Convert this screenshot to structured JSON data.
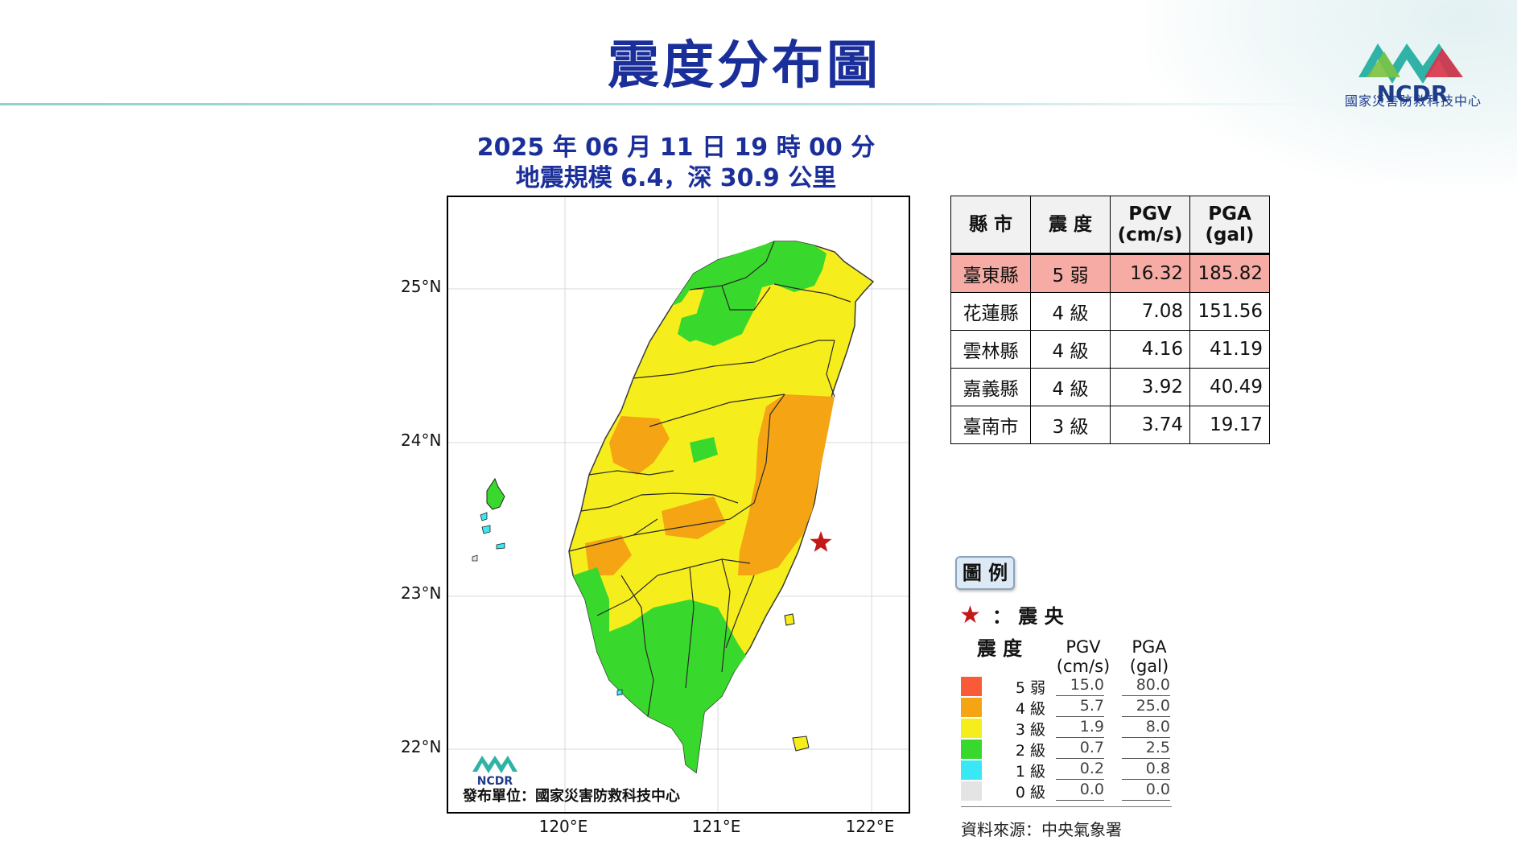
{
  "header": {
    "title": "震度分布圖",
    "logo_text": "NCDR",
    "org_name": "國家災害防救科技中心"
  },
  "event": {
    "datetime": "2025 年 06 月 11 日 19 時 00 分",
    "summary": "地震規模 6.4，深 30.9 公里"
  },
  "map": {
    "lat_labels": [
      "25°N",
      "24°N",
      "23°N",
      "22°N"
    ],
    "lon_labels": [
      "120°E",
      "121°E",
      "122°E"
    ],
    "publisher": "發布單位：國家災害防救科技中心",
    "map_logo_text": "NCDR"
  },
  "table": {
    "headers": [
      "縣 市",
      "震 度",
      "PGV\n(cm/s)",
      "PGA\n(gal)"
    ],
    "rows": [
      {
        "county": "臺東縣",
        "intensity": "5 弱",
        "pgv": "16.32",
        "pga": "185.82",
        "highlight": true
      },
      {
        "county": "花蓮縣",
        "intensity": "4 級",
        "pgv": "7.08",
        "pga": "151.56"
      },
      {
        "county": "雲林縣",
        "intensity": "4 級",
        "pgv": "4.16",
        "pga": "41.19"
      },
      {
        "county": "嘉義縣",
        "intensity": "4 級",
        "pgv": "3.92",
        "pga": "40.49"
      },
      {
        "county": "臺南市",
        "intensity": "3 級",
        "pgv": "3.74",
        "pga": "19.17"
      }
    ]
  },
  "legend": {
    "tag": "圖 例",
    "epicenter_label": "： 震 央",
    "col_intensity": "震 度",
    "col_pgv": "PGV\n(cm/s)",
    "col_pga": "PGA\n(gal)",
    "levels": [
      {
        "label": "5 弱",
        "pgv": "15.0",
        "pga": "80.0",
        "color": "#fa5a38"
      },
      {
        "label": "4 級",
        "pgv": "5.7",
        "pga": "25.0",
        "color": "#f5a414"
      },
      {
        "label": "3 級",
        "pgv": "1.9",
        "pga": "8.0",
        "color": "#f6ee1c"
      },
      {
        "label": "2 級",
        "pgv": "0.7",
        "pga": "2.5",
        "color": "#38d82c"
      },
      {
        "label": "1 級",
        "pgv": "0.2",
        "pga": "0.8",
        "color": "#3ae8f5"
      },
      {
        "label": "0 級",
        "pgv": "0.0",
        "pga": "0.0",
        "color": "#e4e4e4"
      }
    ],
    "source": "資料來源：中央氣象署"
  },
  "colors": {
    "title": "#1b2f9a",
    "int5w": "#fa5a38",
    "int4": "#f5a414",
    "int3": "#f6ee1c",
    "int2": "#38d82c",
    "int1": "#3ae8f5",
    "epicenter": "#c41818",
    "highlight_row": "#f6aca4"
  }
}
